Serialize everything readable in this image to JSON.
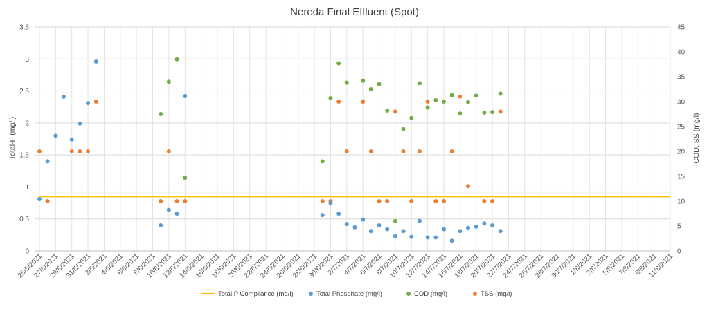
{
  "chart_data": {
    "type": "scatter",
    "title": "Nereda Final Effluent (Spot)",
    "xlabel": "",
    "ylabel_left": "Total-P (mg/l)",
    "ylabel_right": "COD, SS (mg/l)",
    "x_ticks": [
      "25/5/2021",
      "27/5/2021",
      "29/5/2021",
      "31/5/2021",
      "2/6/2021",
      "4/6/2021",
      "6/6/2021",
      "8/6/2021",
      "10/6/2021",
      "12/6/2021",
      "14/6/2021",
      "16/6/2021",
      "18/6/2021",
      "20/6/2021",
      "22/6/2021",
      "24/6/2021",
      "26/6/2021",
      "28/6/2021",
      "30/6/2021",
      "2/7/2021",
      "4/7/2021",
      "6/7/2021",
      "8/7/2021",
      "10/7/2021",
      "12/7/2021",
      "14/7/2021",
      "16/7/2021",
      "18/7/2021",
      "20/7/2021",
      "22/7/2021",
      "24/7/2021",
      "26/7/2021",
      "28/7/2021",
      "30/7/2021",
      "1/8/2021",
      "3/8/2021",
      "5/8/2021",
      "7/8/2021",
      "9/8/2021",
      "11/8/2021"
    ],
    "x_range": [
      "25/5/2021",
      "11/8/2021"
    ],
    "y_left_ticks": [
      "0",
      "0.5",
      "1",
      "1.5",
      "2",
      "2.5",
      "3",
      "3.5"
    ],
    "y_left_range": [
      0,
      3.5
    ],
    "y_right_ticks": [
      "0",
      "5",
      "10",
      "15",
      "20",
      "25",
      "30",
      "35",
      "40",
      "45"
    ],
    "y_right_range": [
      0,
      45
    ],
    "grid": true,
    "legend_position": "bottom",
    "series": [
      {
        "name": "Total P Compliance (mg/l)",
        "kind": "line",
        "axis": "left",
        "color": "#ffc000",
        "x": [
          "25/5/2021",
          "11/8/2021"
        ],
        "values": [
          0.85,
          0.85
        ]
      },
      {
        "name": "Total Phosphate (mg/l)",
        "kind": "scatter",
        "axis": "left",
        "color": "#5b9bd5",
        "x": [
          "25/5/2021",
          "26/5/2021",
          "27/5/2021",
          "28/5/2021",
          "29/5/2021",
          "30/5/2021",
          "31/5/2021",
          "1/6/2021",
          "9/6/2021",
          "10/6/2021",
          "11/6/2021",
          "12/6/2021",
          "29/6/2021",
          "30/6/2021",
          "1/7/2021",
          "2/7/2021",
          "3/7/2021",
          "4/7/2021",
          "5/7/2021",
          "6/7/2021",
          "7/7/2021",
          "8/7/2021",
          "9/7/2021",
          "10/7/2021",
          "11/7/2021",
          "12/7/2021",
          "13/7/2021",
          "14/7/2021",
          "15/7/2021",
          "16/7/2021",
          "17/7/2021",
          "18/7/2021",
          "19/7/2021",
          "20/7/2021",
          "21/7/2021"
        ],
        "values": [
          0.81,
          1.4,
          1.8,
          2.41,
          1.74,
          1.99,
          2.31,
          2.96,
          0.4,
          0.64,
          0.58,
          2.42,
          0.56,
          0.75,
          0.58,
          0.42,
          0.37,
          0.49,
          0.31,
          0.4,
          0.34,
          0.23,
          0.31,
          0.22,
          0.47,
          0.21,
          0.21,
          0.34,
          0.16,
          0.31,
          0.36,
          0.38,
          0.43,
          0.4,
          0.31
        ]
      },
      {
        "name": "COD (mg/l)",
        "kind": "scatter",
        "axis": "right",
        "color": "#70ad47",
        "x": [
          "9/6/2021",
          "10/6/2021",
          "11/6/2021",
          "12/6/2021",
          "29/6/2021",
          "30/6/2021",
          "1/7/2021",
          "2/7/2021",
          "4/7/2021",
          "5/7/2021",
          "6/7/2021",
          "7/7/2021",
          "8/7/2021",
          "9/7/2021",
          "10/7/2021",
          "11/7/2021",
          "12/7/2021",
          "13/7/2021",
          "14/7/2021",
          "15/7/2021",
          "16/7/2021",
          "17/7/2021",
          "18/7/2021",
          "19/7/2021",
          "20/7/2021",
          "21/7/2021"
        ],
        "values": [
          27.5,
          34.0,
          38.5,
          14.7,
          18.0,
          30.7,
          37.7,
          33.8,
          34.2,
          32.5,
          33.5,
          28.2,
          6.0,
          24.5,
          26.7,
          33.7,
          28.8,
          30.3,
          30.0,
          31.3,
          27.6,
          29.9,
          31.2,
          27.8,
          27.9,
          31.6
        ]
      },
      {
        "name": "TSS (mg/l)",
        "kind": "scatter",
        "axis": "right",
        "color": "#ed7d31",
        "x": [
          "25/5/2021",
          "26/5/2021",
          "29/5/2021",
          "30/5/2021",
          "31/5/2021",
          "1/6/2021",
          "9/6/2021",
          "10/6/2021",
          "11/6/2021",
          "12/6/2021",
          "29/6/2021",
          "30/6/2021",
          "1/7/2021",
          "2/7/2021",
          "4/7/2021",
          "5/7/2021",
          "6/7/2021",
          "7/7/2021",
          "8/7/2021",
          "9/7/2021",
          "10/7/2021",
          "11/7/2021",
          "12/7/2021",
          "13/7/2021",
          "14/7/2021",
          "15/7/2021",
          "16/7/2021",
          "17/7/2021",
          "19/7/2021",
          "20/7/2021",
          "21/7/2021"
        ],
        "values": [
          20,
          10,
          20,
          20,
          20,
          30,
          10,
          20,
          10,
          10,
          10,
          10,
          30,
          20,
          30,
          20,
          10,
          10,
          28,
          20,
          10,
          20,
          30,
          10,
          10,
          20,
          31,
          13,
          10,
          10,
          28
        ]
      }
    ]
  }
}
